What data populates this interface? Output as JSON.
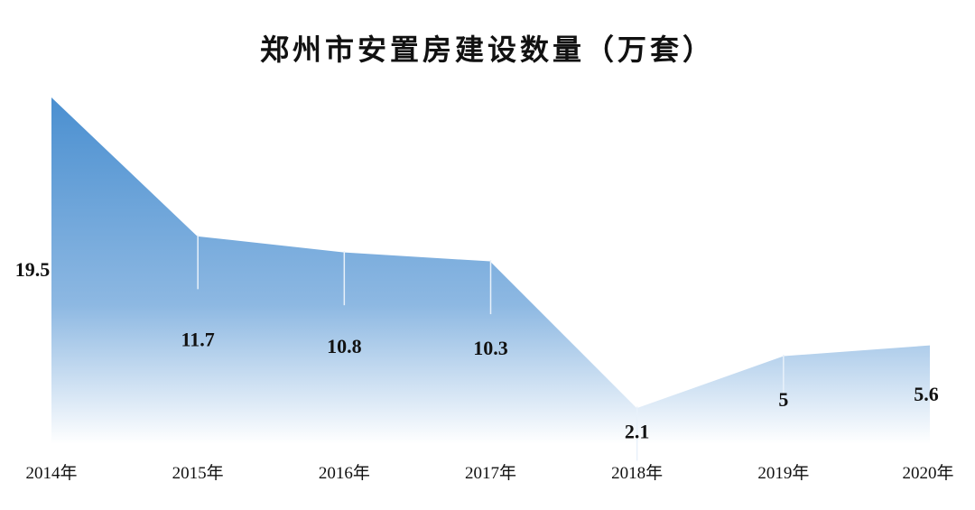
{
  "chart_data": {
    "type": "area",
    "title": "郑州市安置房建设数量（万套）",
    "xlabel": "",
    "ylabel": "",
    "categories": [
      "2014年",
      "2015年",
      "2016年",
      "2017年",
      "2018年",
      "2019年",
      "2020年"
    ],
    "series": [
      {
        "values": [
          19.5,
          11.7,
          10.8,
          10.3,
          2.1,
          5,
          5.6
        ],
        "value_labels": [
          "19.5",
          "11.7",
          "10.8",
          "10.3",
          "2.1",
          "5",
          "5.6"
        ]
      }
    ],
    "ylim": [
      0,
      20
    ],
    "grid": false,
    "legend": "none",
    "colors": {
      "fill_top": "#4a8fd0",
      "fill_mid": "#8db8e2",
      "fill_bottom": "#ffffff",
      "outline": "#ffffff",
      "drop_line": "#e8f1fa",
      "text": "#111111"
    }
  }
}
